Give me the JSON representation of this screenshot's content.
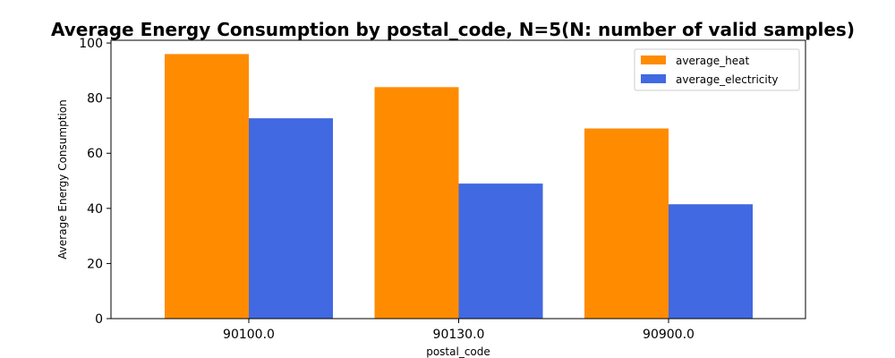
{
  "chart_data": {
    "type": "bar",
    "title": "Average Energy Consumption by postal_code, N=5(N: number of valid samples)",
    "xlabel": "postal_code",
    "ylabel": "Average Energy Consumption",
    "categories": [
      "90100.0",
      "90130.0",
      "90900.0"
    ],
    "series": [
      {
        "name": "average_heat",
        "color": "#ff8c00",
        "values": [
          96.0,
          84.0,
          69.0
        ]
      },
      {
        "name": "average_electricity",
        "color": "#4169e1",
        "values": [
          72.7,
          49.0,
          41.5
        ]
      }
    ],
    "ylim": [
      0,
      101
    ],
    "yticks": [
      "0",
      "20",
      "40",
      "60",
      "80",
      "100"
    ],
    "grid": false,
    "legend_position": "top-right"
  }
}
